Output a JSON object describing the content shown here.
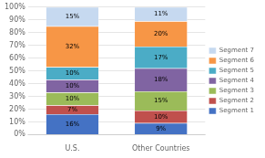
{
  "chart_data": {
    "type": "bar",
    "stacked": true,
    "categories": [
      "U.S.",
      "Other Countries"
    ],
    "series": [
      {
        "name": "Segment 1",
        "color": "#4472C4",
        "values": [
          16,
          9
        ],
        "value_labels": [
          "16%",
          "9%"
        ]
      },
      {
        "name": "Segment 2",
        "color": "#C0504D",
        "values": [
          7,
          10
        ],
        "value_labels": [
          "7%",
          "10%"
        ]
      },
      {
        "name": "Segment 3",
        "color": "#9BBB59",
        "values": [
          10,
          15
        ],
        "value_labels": [
          "10%",
          "15%"
        ]
      },
      {
        "name": "Segment 4",
        "color": "#8064A2",
        "values": [
          10,
          18
        ],
        "value_labels": [
          "10%",
          "18%"
        ]
      },
      {
        "name": "Segment 5",
        "color": "#4BACC6",
        "values": [
          10,
          17
        ],
        "value_labels": [
          "10%",
          "17%"
        ]
      },
      {
        "name": "Segment 6",
        "color": "#F79646",
        "values": [
          32,
          20
        ],
        "value_labels": [
          "32%",
          "20%"
        ]
      },
      {
        "name": "Segment 7",
        "color": "#C6D9F0",
        "values": [
          15,
          11
        ],
        "value_labels": [
          "15%",
          "11%"
        ]
      }
    ],
    "ylim": [
      0,
      100
    ],
    "yticks": [
      {
        "value": 0,
        "label": "0%"
      },
      {
        "value": 10,
        "label": "10%"
      },
      {
        "value": 20,
        "label": "20%"
      },
      {
        "value": 30,
        "label": "30%"
      },
      {
        "value": 40,
        "label": "40%"
      },
      {
        "value": 50,
        "label": "50%"
      },
      {
        "value": 60,
        "label": "60%"
      },
      {
        "value": 70,
        "label": "70%"
      },
      {
        "value": 80,
        "label": "80%"
      },
      {
        "value": 90,
        "label": "90%"
      },
      {
        "value": 100,
        "label": "100%"
      }
    ],
    "grid": "y",
    "legend": "right",
    "data_labels": true
  }
}
